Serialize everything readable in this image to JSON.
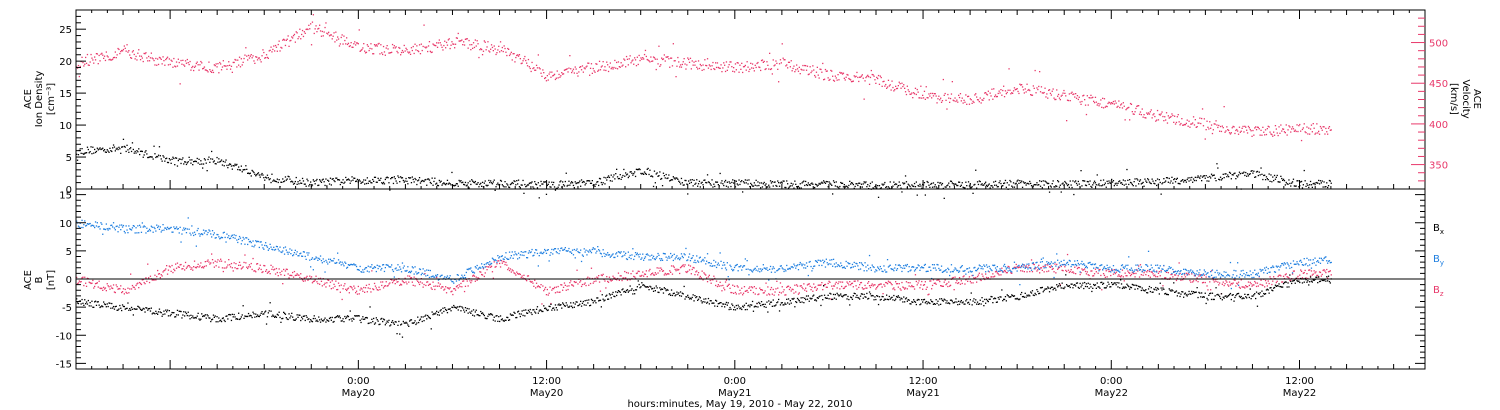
{
  "colors": {
    "black": "#000000",
    "density": "#000000",
    "velocity": "#e8386a",
    "bx": "#000000",
    "by": "#1f7fe0",
    "bz": "#e8386a"
  },
  "time_axis": {
    "start": "2010-05-19 06:00",
    "end": "2010-05-22 20:00",
    "tick_labels": [
      {
        "time": "2010-05-20 00:00",
        "hm": "0:00",
        "date": "May20"
      },
      {
        "time": "2010-05-20 12:00",
        "hm": "12:00",
        "date": "May20"
      },
      {
        "time": "2010-05-21 00:00",
        "hm": "0:00",
        "date": "May21"
      },
      {
        "time": "2010-05-21 12:00",
        "hm": "12:00",
        "date": "May21"
      },
      {
        "time": "2010-05-22 00:00",
        "hm": "0:00",
        "date": "May22"
      },
      {
        "time": "2010-05-22 12:00",
        "hm": "12:00",
        "date": "May22"
      }
    ],
    "xlabel": "hours:minutes, May 19, 2010 - May 22, 2010"
  },
  "panels": {
    "top": {
      "left_label": [
        "ACE",
        "Ion Density",
        "[cm⁻³]"
      ],
      "right_label": [
        "ACE",
        "Velocity",
        "[km/s]"
      ],
      "left_ticks": [
        "0",
        "5",
        "10",
        "15",
        "20",
        "25"
      ],
      "right_ticks": [
        "350",
        "400",
        "450",
        "500"
      ]
    },
    "bottom": {
      "left_label": [
        "ACE",
        "B",
        "[nT]"
      ],
      "left_ticks": [
        "-15",
        "-10",
        "-5",
        "0",
        "5",
        "10",
        "15"
      ],
      "legend": [
        {
          "base": "B",
          "sub": "x",
          "color_key": "bx"
        },
        {
          "base": "B",
          "sub": "y",
          "color_key": "by"
        },
        {
          "base": "B",
          "sub": "z",
          "color_key": "bz"
        }
      ]
    }
  },
  "chart_data": [
    {
      "type": "scatter",
      "x_axis": "time",
      "ylim_left": [
        0,
        28
      ],
      "ylim_right": [
        320,
        540
      ],
      "y_scale": "linear",
      "grid": false,
      "series": [
        {
          "name": "Ion Density",
          "axis": "left",
          "color_key": "density",
          "unit": "cm-3",
          "x": [
            "2010-05-19 06:00",
            "2010-05-19 09:00",
            "2010-05-19 12:00",
            "2010-05-19 15:00",
            "2010-05-19 18:00",
            "2010-05-19 21:00",
            "2010-05-20 00:00",
            "2010-05-20 03:00",
            "2010-05-20 06:00",
            "2010-05-20 09:00",
            "2010-05-20 12:00",
            "2010-05-20 15:00",
            "2010-05-20 18:00",
            "2010-05-20 21:00",
            "2010-05-21 00:00",
            "2010-05-21 03:00",
            "2010-05-21 06:00",
            "2010-05-21 09:00",
            "2010-05-21 12:00",
            "2010-05-21 15:00",
            "2010-05-21 18:00",
            "2010-05-21 21:00",
            "2010-05-22 00:00",
            "2010-05-22 03:00",
            "2010-05-22 06:00",
            "2010-05-22 09:00",
            "2010-05-22 12:00",
            "2010-05-22 14:00"
          ],
          "y": [
            6,
            6.5,
            4.5,
            4.5,
            2,
            1,
            1.5,
            1.5,
            1,
            1,
            0.7,
            1,
            3,
            1,
            1,
            0.8,
            0.8,
            0.6,
            0.7,
            0.8,
            0.9,
            0.8,
            1,
            1.2,
            1.8,
            2.5,
            0.8,
            0.9
          ]
        },
        {
          "name": "Velocity",
          "axis": "right",
          "color_key": "velocity",
          "unit": "km/s",
          "x": [
            "2010-05-19 06:00",
            "2010-05-19 09:00",
            "2010-05-19 12:00",
            "2010-05-19 15:00",
            "2010-05-19 18:00",
            "2010-05-19 21:00",
            "2010-05-20 00:00",
            "2010-05-20 03:00",
            "2010-05-20 06:00",
            "2010-05-20 09:00",
            "2010-05-20 12:00",
            "2010-05-20 15:00",
            "2010-05-20 18:00",
            "2010-05-20 21:00",
            "2010-05-21 00:00",
            "2010-05-21 03:00",
            "2010-05-21 06:00",
            "2010-05-21 09:00",
            "2010-05-21 12:00",
            "2010-05-21 15:00",
            "2010-05-21 18:00",
            "2010-05-21 21:00",
            "2010-05-22 00:00",
            "2010-05-22 03:00",
            "2010-05-22 06:00",
            "2010-05-22 09:00",
            "2010-05-22 12:00",
            "2010-05-22 14:00"
          ],
          "y": [
            475,
            490,
            475,
            470,
            485,
            520,
            495,
            490,
            500,
            495,
            460,
            470,
            480,
            475,
            470,
            475,
            460,
            455,
            435,
            430,
            445,
            435,
            425,
            410,
            400,
            390,
            395,
            395
          ]
        }
      ]
    },
    {
      "type": "scatter",
      "x_axis": "time",
      "ylim": [
        -16,
        16
      ],
      "y_scale": "linear",
      "grid": false,
      "zero_line": true,
      "series": [
        {
          "name": "Bx",
          "color_key": "bx",
          "unit": "nT",
          "x": [
            "2010-05-19 06:00",
            "2010-05-19 09:00",
            "2010-05-19 12:00",
            "2010-05-19 15:00",
            "2010-05-19 18:00",
            "2010-05-19 21:00",
            "2010-05-20 00:00",
            "2010-05-20 03:00",
            "2010-05-20 06:00",
            "2010-05-20 09:00",
            "2010-05-20 12:00",
            "2010-05-20 15:00",
            "2010-05-20 18:00",
            "2010-05-20 21:00",
            "2010-05-21 00:00",
            "2010-05-21 03:00",
            "2010-05-21 06:00",
            "2010-05-21 09:00",
            "2010-05-21 12:00",
            "2010-05-21 15:00",
            "2010-05-21 18:00",
            "2010-05-21 21:00",
            "2010-05-22 00:00",
            "2010-05-22 03:00",
            "2010-05-22 06:00",
            "2010-05-22 09:00",
            "2010-05-22 12:00",
            "2010-05-22 14:00"
          ],
          "y": [
            -4,
            -5,
            -6,
            -7,
            -6,
            -7,
            -7,
            -8,
            -5,
            -7,
            -5,
            -4,
            -1,
            -3,
            -5,
            -4,
            -3,
            -3,
            -4,
            -4,
            -3,
            -1,
            -1,
            -2,
            -3,
            -3,
            0,
            0
          ]
        },
        {
          "name": "By",
          "color_key": "by",
          "unit": "nT",
          "x": [
            "2010-05-19 06:00",
            "2010-05-19 09:00",
            "2010-05-19 12:00",
            "2010-05-19 15:00",
            "2010-05-19 18:00",
            "2010-05-19 21:00",
            "2010-05-20 00:00",
            "2010-05-20 03:00",
            "2010-05-20 06:00",
            "2010-05-20 09:00",
            "2010-05-20 12:00",
            "2010-05-20 15:00",
            "2010-05-20 18:00",
            "2010-05-20 21:00",
            "2010-05-21 00:00",
            "2010-05-21 03:00",
            "2010-05-21 06:00",
            "2010-05-21 09:00",
            "2010-05-21 12:00",
            "2010-05-21 15:00",
            "2010-05-21 18:00",
            "2010-05-21 21:00",
            "2010-05-22 00:00",
            "2010-05-22 03:00",
            "2010-05-22 06:00",
            "2010-05-22 09:00",
            "2010-05-22 12:00",
            "2010-05-22 14:00"
          ],
          "y": [
            10,
            9,
            9,
            8,
            6,
            4,
            2,
            2,
            0,
            4,
            5,
            5,
            4,
            4,
            2,
            2,
            3,
            2,
            2,
            2,
            2,
            3,
            2,
            2,
            1,
            1,
            3,
            3.5
          ]
        },
        {
          "name": "Bz",
          "color_key": "bz",
          "unit": "nT",
          "x": [
            "2010-05-19 06:00",
            "2010-05-19 09:00",
            "2010-05-19 12:00",
            "2010-05-19 15:00",
            "2010-05-19 18:00",
            "2010-05-19 21:00",
            "2010-05-20 00:00",
            "2010-05-20 03:00",
            "2010-05-20 06:00",
            "2010-05-20 09:00",
            "2010-05-20 12:00",
            "2010-05-20 15:00",
            "2010-05-20 18:00",
            "2010-05-20 21:00",
            "2010-05-21 00:00",
            "2010-05-21 03:00",
            "2010-05-21 06:00",
            "2010-05-21 09:00",
            "2010-05-21 12:00",
            "2010-05-21 15:00",
            "2010-05-21 18:00",
            "2010-05-21 21:00",
            "2010-05-22 00:00",
            "2010-05-22 03:00",
            "2010-05-22 06:00",
            "2010-05-22 09:00",
            "2010-05-22 12:00",
            "2010-05-22 14:00"
          ],
          "y": [
            0,
            -2,
            2,
            3,
            2,
            0,
            -2,
            0,
            -2,
            3,
            -2,
            0,
            1,
            2,
            -2,
            -2,
            -1,
            -1,
            -1,
            0,
            2,
            2,
            1,
            1,
            0,
            -1,
            1,
            1
          ]
        }
      ]
    }
  ]
}
